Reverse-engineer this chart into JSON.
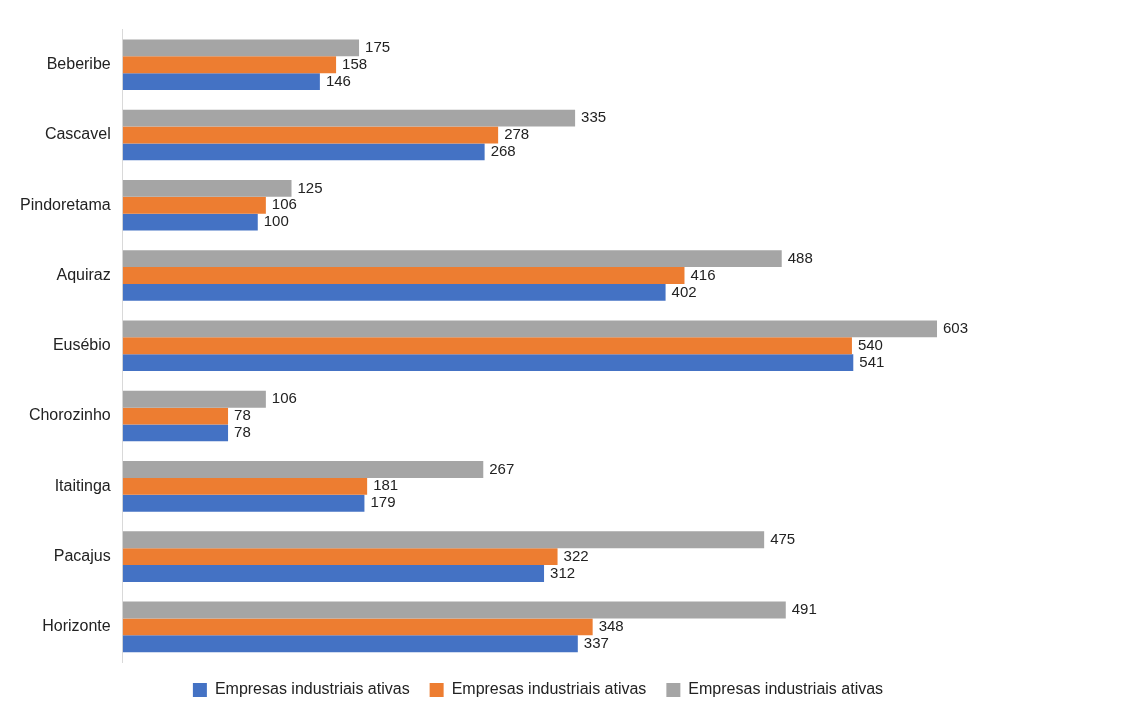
{
  "chart_data": {
    "type": "bar",
    "orientation": "horizontal",
    "categories": [
      "Beberibe",
      "Cascavel",
      "Pindoretama",
      "Aquiraz",
      "Eusébio",
      "Chorozinho",
      "Itaitinga",
      "Pacajus",
      "Horizonte"
    ],
    "series": [
      {
        "name": "Empresas industriais ativas",
        "color": "#4472c4",
        "values": [
          146,
          268,
          100,
          402,
          541,
          78,
          179,
          312,
          337
        ]
      },
      {
        "name": "Empresas industriais ativas",
        "color": "#ed7d31",
        "values": [
          158,
          278,
          106,
          416,
          540,
          78,
          181,
          322,
          348
        ]
      },
      {
        "name": "Empresas industriais ativas",
        "color": "#a5a5a5",
        "values": [
          175,
          335,
          125,
          488,
          603,
          106,
          267,
          475,
          491
        ]
      }
    ],
    "data_labels": true,
    "grid": false,
    "legend": "bottom"
  }
}
